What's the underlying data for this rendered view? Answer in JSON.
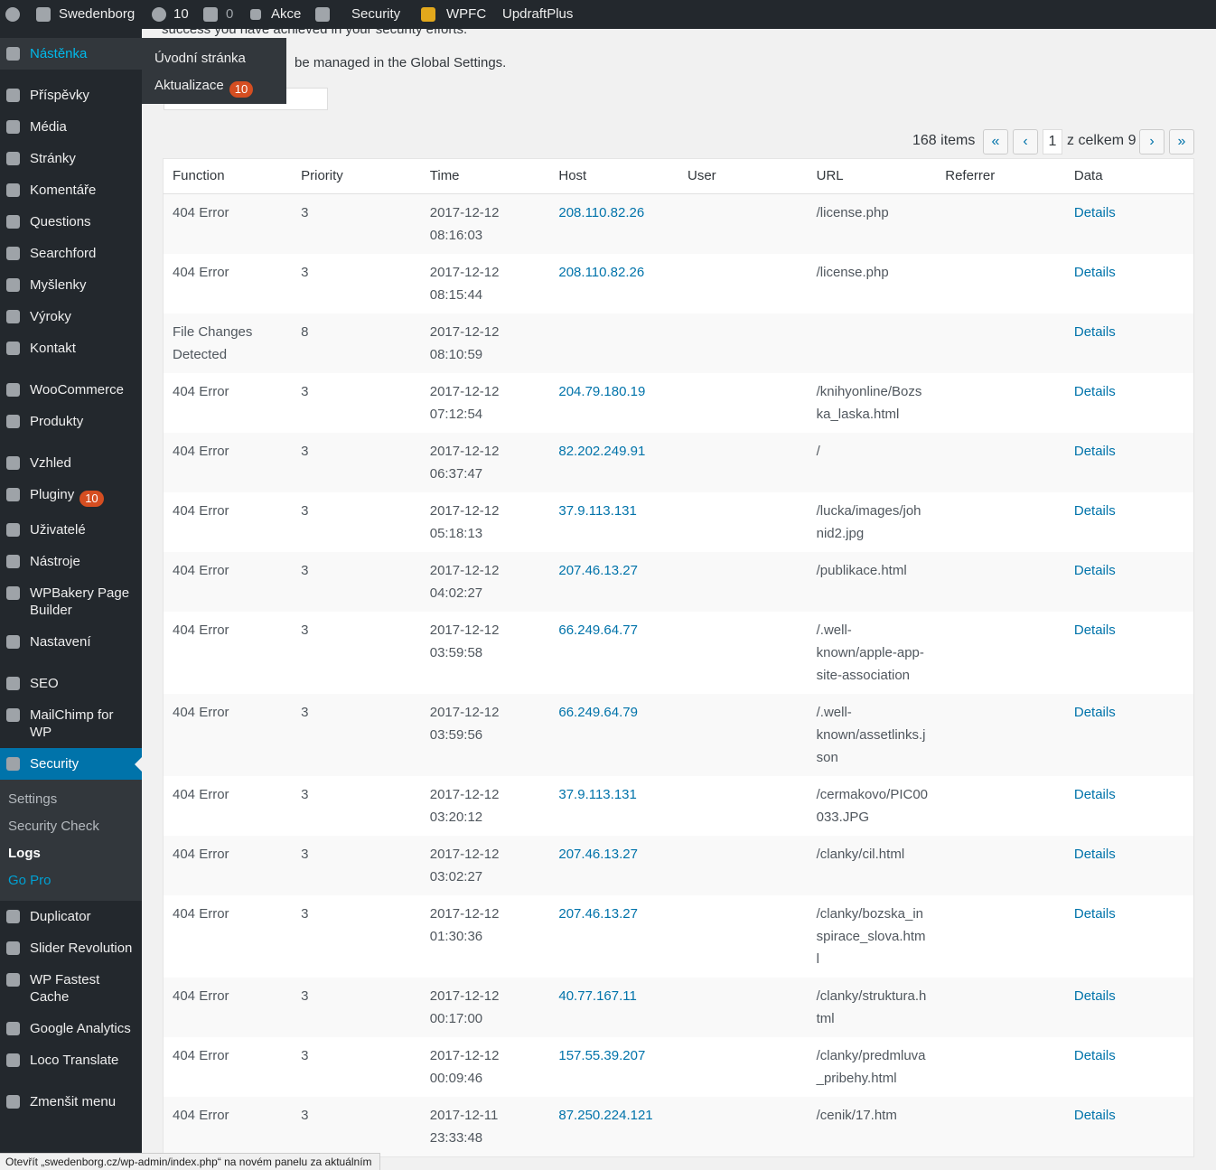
{
  "admin_bar": {
    "site": "Swedenborg",
    "updates": "10",
    "comments": "0",
    "new": "Akce",
    "items": [
      "Security",
      "WPFC",
      "UpdraftPlus"
    ]
  },
  "flyout": {
    "items": [
      {
        "label": "Úvodní stránka"
      },
      {
        "label": "Aktualizace",
        "badge": "10"
      }
    ]
  },
  "sidebar": {
    "groups": [
      {
        "items": [
          {
            "label": "Nástěnka"
          }
        ]
      },
      {
        "items": [
          {
            "label": "Příspěvky"
          },
          {
            "label": "Média"
          },
          {
            "label": "Stránky"
          },
          {
            "label": "Komentáře"
          },
          {
            "label": "Questions"
          },
          {
            "label": "Searchford"
          },
          {
            "label": "Myšlenky"
          },
          {
            "label": "Výroky"
          },
          {
            "label": "Kontakt"
          }
        ]
      },
      {
        "items": [
          {
            "label": "WooCommerce"
          },
          {
            "label": "Produkty"
          }
        ]
      },
      {
        "items": [
          {
            "label": "Vzhled"
          },
          {
            "label": "Pluginy",
            "badge": "10"
          },
          {
            "label": "Uživatelé"
          },
          {
            "label": "Nástroje"
          },
          {
            "label": "WPBakery Page Builder"
          },
          {
            "label": "Nastavení"
          }
        ]
      },
      {
        "items": [
          {
            "label": "SEO"
          },
          {
            "label": "MailChimp for WP"
          },
          {
            "label": "Security",
            "submenu": [
              "Settings",
              "Security Check",
              "Logs",
              "Go Pro"
            ]
          },
          {
            "label": "Duplicator"
          },
          {
            "label": "Slider Revolution"
          },
          {
            "label": "WP Fastest Cache"
          },
          {
            "label": "Google Analytics"
          },
          {
            "label": "Loco Translate"
          }
        ]
      },
      {
        "items": [
          {
            "label": "Zmenšit menu"
          }
        ]
      }
    ]
  },
  "content": {
    "intro": "success you have achieved in your security efforts.",
    "note": "be managed in the Global Settings.",
    "pagination": {
      "count": "168 items",
      "first": "«",
      "prev": "‹",
      "page": "1",
      "total": "z celkem 9",
      "next": "›",
      "last": "»"
    },
    "table": {
      "columns": [
        "Function",
        "Priority",
        "Time",
        "Host",
        "User",
        "URL",
        "Referrer",
        "Data"
      ],
      "rows": [
        {
          "function": "404 Error",
          "priority": 3,
          "time": "2017-12-12 08:16:03",
          "host": "208.110.82.26",
          "url": "/license.php",
          "data": "Details"
        },
        {
          "function": "404 Error",
          "priority": 3,
          "time": "2017-12-12 08:15:44",
          "host": "208.110.82.26",
          "url": "/license.php",
          "data": "Details"
        },
        {
          "function": "File Changes Detected",
          "priority": 8,
          "time": "2017-12-12 08:10:59",
          "data": "Details"
        },
        {
          "function": "404 Error",
          "priority": 3,
          "time": "2017-12-12 07:12:54",
          "host": "204.79.180.19",
          "url": "/knihyonline/Bozska_laska.html",
          "data": "Details"
        },
        {
          "function": "404 Error",
          "priority": 3,
          "time": "2017-12-12 06:37:47",
          "host": "82.202.249.91",
          "url": "/",
          "data": "Details"
        },
        {
          "function": "404 Error",
          "priority": 3,
          "time": "2017-12-12 05:18:13",
          "host": "37.9.113.131",
          "url": "/lucka/images/johnid2.jpg",
          "data": "Details"
        },
        {
          "function": "404 Error",
          "priority": 3,
          "time": "2017-12-12 04:02:27",
          "host": "207.46.13.27",
          "url": "/publikace.html",
          "data": "Details"
        },
        {
          "function": "404 Error",
          "priority": 3,
          "time": "2017-12-12 03:59:58",
          "host": "66.249.64.77",
          "url": "/.well-known/apple-app-site-association",
          "data": "Details"
        },
        {
          "function": "404 Error",
          "priority": 3,
          "time": "2017-12-12 03:59:56",
          "host": "66.249.64.79",
          "url": "/.well-known/assetlinks.json",
          "data": "Details"
        },
        {
          "function": "404 Error",
          "priority": 3,
          "time": "2017-12-12 03:20:12",
          "host": "37.9.113.131",
          "url": "/cermakovo/PIC00033.JPG",
          "data": "Details"
        },
        {
          "function": "404 Error",
          "priority": 3,
          "time": "2017-12-12 03:02:27",
          "host": "207.46.13.27",
          "url": "/clanky/cil.html",
          "data": "Details"
        },
        {
          "function": "404 Error",
          "priority": 3,
          "time": "2017-12-12 01:30:36",
          "host": "207.46.13.27",
          "url": "/clanky/bozska_inspirace_slova.html",
          "data": "Details"
        },
        {
          "function": "404 Error",
          "priority": 3,
          "time": "2017-12-12 00:17:00",
          "host": "40.77.167.11",
          "url": "/clanky/struktura.html",
          "data": "Details"
        },
        {
          "function": "404 Error",
          "priority": 3,
          "time": "2017-12-12 00:09:46",
          "host": "157.55.39.207",
          "url": "/clanky/predmluva_pribehy.html",
          "data": "Details"
        },
        {
          "function": "404 Error",
          "priority": 3,
          "time": "2017-12-11 23:33:48",
          "host": "87.250.224.121",
          "url": "/cenik/17.htm",
          "data": "Details"
        }
      ]
    }
  },
  "status_bar": "Otevřít „swedenborg.cz/wp-admin/index.php“ na novém panelu za aktuálním"
}
